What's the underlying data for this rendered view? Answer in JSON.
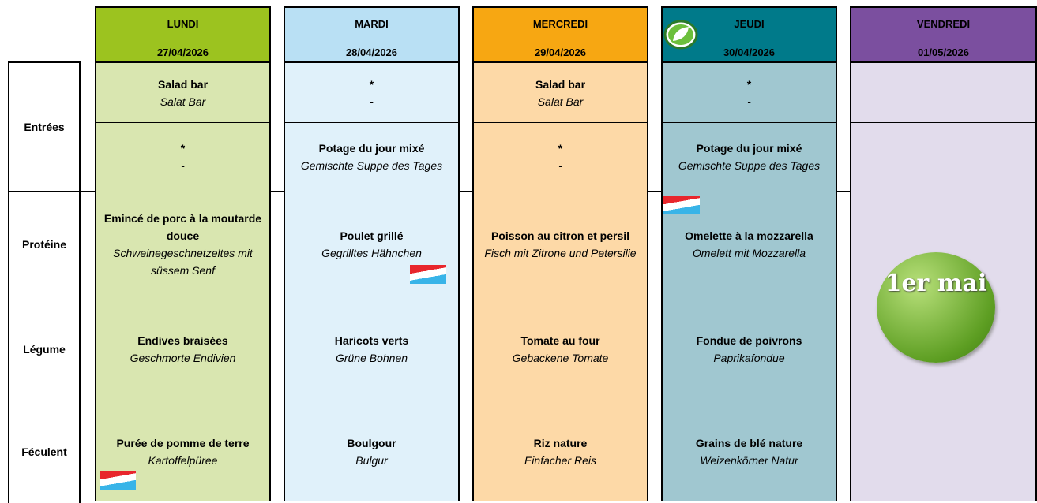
{
  "row_labels": [
    "Entrées",
    "Protéine",
    "Légume",
    "Féculent"
  ],
  "columns": [
    {
      "day": "LUNDI",
      "date": "27/04/2026",
      "cells": [
        {
          "fr": "Salad bar",
          "de": "Salat Bar"
        },
        {
          "fr": "*",
          "de": "-"
        },
        {
          "fr": "Emincé de porc à la moutarde douce",
          "de": "Schweinegeschnetzeltes mit süssem Senf"
        },
        {
          "fr": "Endives braisées",
          "de": "Geschmorte Endivien"
        },
        {
          "fr": "Purée de pomme de terre",
          "de": "Kartoffelpüree"
        }
      ]
    },
    {
      "day": "MARDI",
      "date": "28/04/2026",
      "cells": [
        {
          "fr": "*",
          "de": "-"
        },
        {
          "fr": "Potage du jour mixé",
          "de": "Gemischte Suppe des Tages"
        },
        {
          "fr": "Poulet grillé",
          "de": "Gegrilltes Hähnchen"
        },
        {
          "fr": "Haricots verts",
          "de": "Grüne Bohnen"
        },
        {
          "fr": "Boulgour",
          "de": "Bulgur"
        }
      ]
    },
    {
      "day": "MERCREDI",
      "date": "29/04/2026",
      "cells": [
        {
          "fr": "Salad bar",
          "de": "Salat Bar"
        },
        {
          "fr": "*",
          "de": "-"
        },
        {
          "fr": "Poisson au citron et persil",
          "de": "Fisch mit Zitrone und Petersilie"
        },
        {
          "fr": "Tomate au four",
          "de": "Gebackene Tomate"
        },
        {
          "fr": "Riz nature",
          "de": "Einfacher Reis"
        }
      ]
    },
    {
      "day": "JEUDI",
      "date": "30/04/2026",
      "cells": [
        {
          "fr": "*",
          "de": "-"
        },
        {
          "fr": "Potage du jour mixé",
          "de": "Gemischte Suppe des Tages"
        },
        {
          "fr": "Omelette à la mozzarella",
          "de": "Omelett mit Mozzarella"
        },
        {
          "fr": "Fondue de poivrons",
          "de": "Paprikafondue"
        },
        {
          "fr": "Grains de blé nature",
          "de": "Weizenkörner Natur"
        }
      ]
    },
    {
      "day": "VENDREDI",
      "date": "01/05/2026",
      "badge": "1er mai"
    }
  ]
}
